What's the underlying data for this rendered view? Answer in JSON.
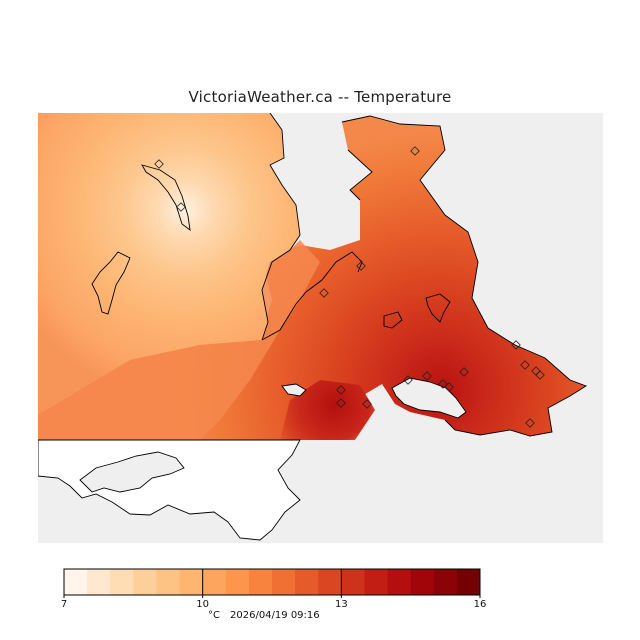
{
  "title": "VictoriaWeather.ca -- Temperature",
  "legend": {
    "min": 7,
    "max": 16,
    "tick_labels": [
      "7",
      "10",
      "13",
      "16"
    ],
    "unit": "°C",
    "timestamp": "2026/04/19 09:16",
    "colors": [
      "#fff5eb",
      "#fee8d0",
      "#fedcb4",
      "#fdd09a",
      "#fdc385",
      "#fdb56f",
      "#fda55e",
      "#fd954d",
      "#f8833f",
      "#f07033",
      "#e65b2a",
      "#db4622",
      "#cf321b",
      "#c21e14",
      "#b40f0e",
      "#a1050a",
      "#8b0307",
      "#740004"
    ]
  },
  "colors": {
    "water": "#efefef",
    "no_data_land": "#ffffff",
    "coast": "#000000"
  },
  "station_count": 18
}
